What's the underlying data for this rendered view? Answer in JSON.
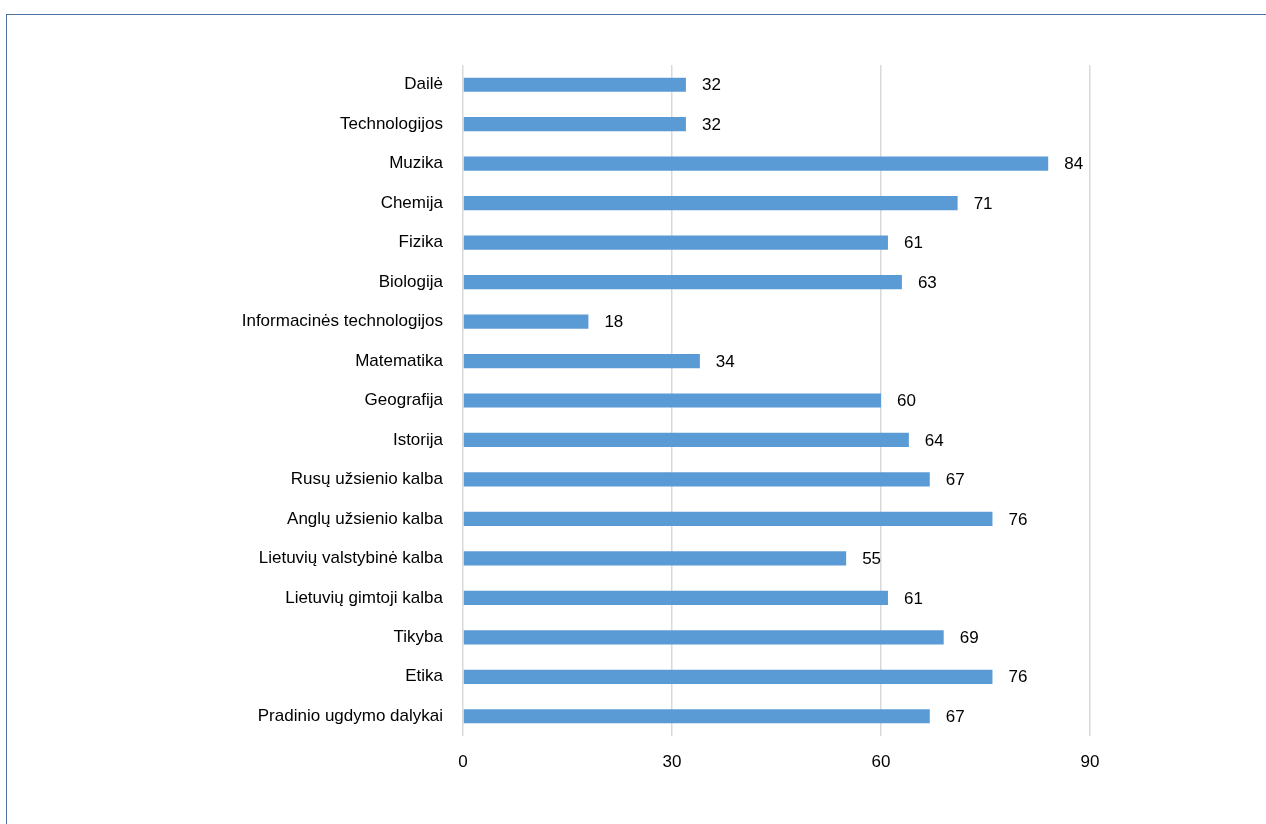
{
  "chart_data": {
    "type": "bar",
    "orientation": "horizontal",
    "categories": [
      "Dailė",
      "Technologijos",
      "Muzika",
      "Chemija",
      "Fizika",
      "Biologija",
      "Informacinės technologijos",
      "Matematika",
      "Geografija",
      "Istorija",
      "Rusų užsienio kalba",
      "Anglų užsienio kalba",
      "Lietuvių valstybinė kalba",
      "Lietuvių gimtoji kalba",
      "Tikyba",
      "Etika",
      "Pradinio ugdymo dalykai"
    ],
    "values": [
      32,
      32,
      84,
      71,
      61,
      63,
      18,
      34,
      60,
      64,
      67,
      76,
      55,
      61,
      69,
      76,
      67
    ],
    "color": "#5b9bd5",
    "xlim": [
      0,
      90
    ],
    "xticks": [
      0,
      30,
      60,
      90
    ],
    "grid": "x",
    "data_labels": true
  }
}
